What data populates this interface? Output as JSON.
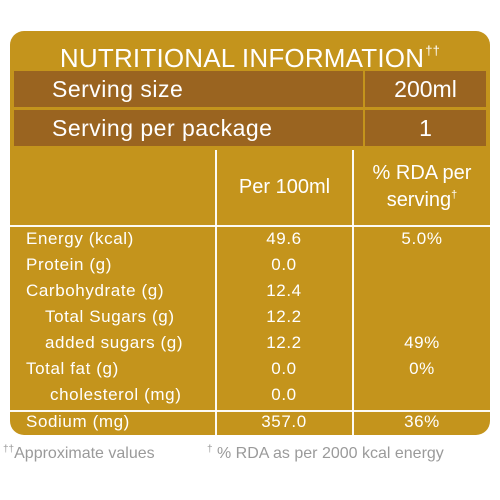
{
  "title": {
    "text": "NUTRITIONAL INFORMATION",
    "mark": "††"
  },
  "serving_size": {
    "label": "Serving size",
    "value": "200ml"
  },
  "serving_per_package": {
    "label": "Serving per package",
    "value": "1"
  },
  "columns": {
    "per_100ml": "Per 100ml",
    "rda_line1": "% RDA per",
    "rda_line2": "serving",
    "rda_mark": "†"
  },
  "nutrients": [
    {
      "name": "Energy (kcal)",
      "value": "49.6",
      "rda": "5.0%"
    },
    {
      "name": "Protein (g)",
      "value": "0.0",
      "rda": ""
    },
    {
      "name": "Carbohydrate (g)",
      "value": "12.4",
      "rda": ""
    },
    {
      "name": "Total Sugars (g)",
      "value": "12.2",
      "rda": ""
    },
    {
      "name": "added sugars (g)",
      "value": "12.2",
      "rda": "49%"
    },
    {
      "name": "Total fat (g)",
      "value": "0.0",
      "rda": "0%"
    },
    {
      "name": "cholesterol (mg)",
      "value": "0.0",
      "rda": ""
    },
    {
      "name": "Sodium (mg)",
      "value": "357.0",
      "rda": "36%"
    }
  ],
  "footer": {
    "note1_mark": "††",
    "note1": "Approximate values",
    "note2_mark": "†",
    "note2": " % RDA as per 2000 kcal energy"
  }
}
